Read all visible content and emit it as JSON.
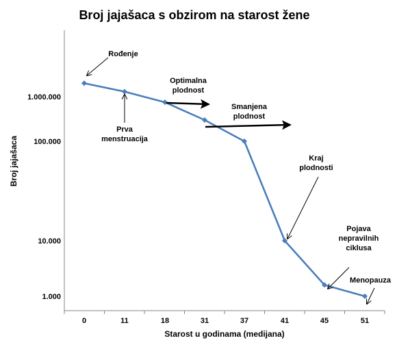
{
  "chart_data": {
    "type": "line",
    "title": "Broj jajašaca s obzirom na starost žene",
    "xlabel": "Starost u godinama (medijana)",
    "ylabel": "Broj jajašaca",
    "y_scale": "log",
    "grid": false,
    "legend": "none",
    "categories": [
      "0",
      "11",
      "18",
      "31",
      "37",
      "41",
      "45",
      "51"
    ],
    "yticks": [
      {
        "value": 1000,
        "label": "1.000"
      },
      {
        "value": 10000,
        "label": "10.000"
      },
      {
        "value": 100000,
        "label": "100.000"
      },
      {
        "value": 1000000,
        "label": "1.000.000"
      }
    ],
    "series": [
      {
        "values": [
          2000000,
          1300000,
          750000,
          300000,
          100000,
          10000,
          1600,
          1000
        ],
        "color": "#4a7ebb"
      }
    ],
    "annotations": [
      {
        "lines": [
          "Rođenje"
        ],
        "category": "0"
      },
      {
        "lines": [
          "Prva",
          "menstruacija"
        ],
        "category": "11"
      },
      {
        "lines": [
          "Optimalna",
          "plodnost"
        ],
        "category": "18"
      },
      {
        "lines": [
          "Smanjena",
          "plodnost"
        ],
        "category": "31"
      },
      {
        "lines": [
          "Kraj",
          "plodnosti"
        ],
        "category": "41"
      },
      {
        "lines": [
          "Pojava",
          "nepravilnih",
          "ciklusa"
        ],
        "category": "45"
      },
      {
        "lines": [
          "Menopauza"
        ],
        "category": "51"
      }
    ]
  }
}
